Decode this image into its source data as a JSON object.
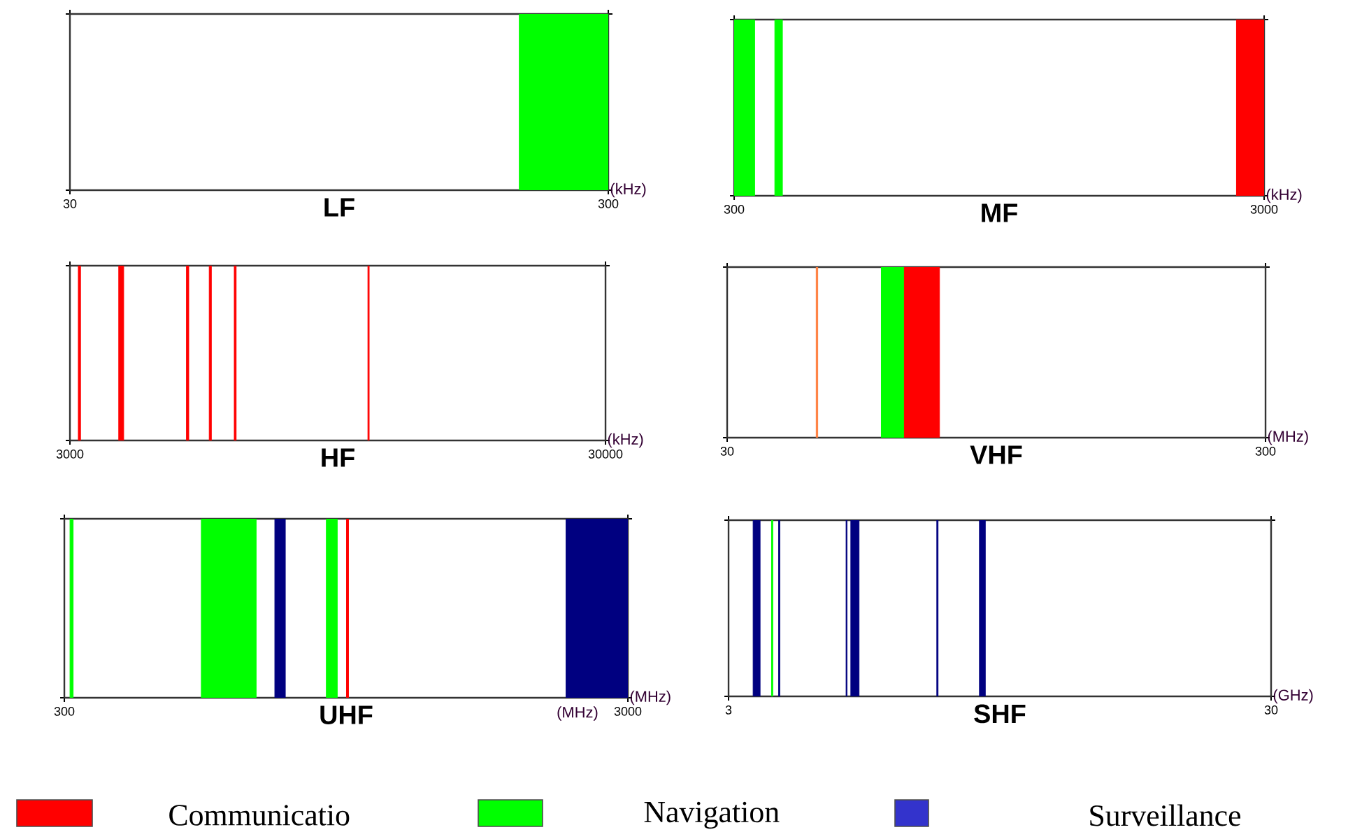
{
  "chart_data": [
    {
      "type": "bar",
      "orientation": "horizontal",
      "categories": [
        null
      ],
      "xlabel": "LF",
      "xlim": [
        30,
        300
      ],
      "xticks": [
        30,
        300
      ],
      "log": "x",
      "tick_labels": "x",
      "annotations": [
        "(kHz)"
      ],
      "series": [
        {
          "color": "#00ff00",
          "base": [
            205
          ],
          "values": [
            95
          ]
        }
      ]
    },
    {
      "type": "bar",
      "orientation": "horizontal",
      "categories": [
        null
      ],
      "xlabel": "MF",
      "xlim": [
        300,
        3000
      ],
      "xticks": [
        300,
        3000
      ],
      "log": "x",
      "tick_labels": "x",
      "annotations": [
        "(kHz)"
      ],
      "series": [
        {
          "color": "#00ff00",
          "base": [
            300
          ],
          "values": [
            28
          ]
        },
        {
          "color": "#00ff00",
          "base": [
            358
          ],
          "values": [
            12
          ]
        },
        {
          "color": "#ff0000",
          "base": [
            2660
          ],
          "values": [
            340
          ]
        }
      ]
    },
    {
      "type": "bar",
      "orientation": "horizontal",
      "categories": [
        null
      ],
      "xlabel": "HF",
      "xlim": [
        3000,
        30000
      ],
      "xticks": [
        3000,
        30000
      ],
      "log": "x",
      "tick_labels": "x",
      "annotations": [
        "(kHz)"
      ],
      "series": [
        {
          "color": "#ff0000",
          "base": [
            3110
          ],
          "values": [
            30
          ]
        },
        {
          "color": "#ff0000",
          "base": [
            3700
          ],
          "values": [
            80
          ]
        },
        {
          "color": "#ff0000",
          "base": [
            4950
          ],
          "values": [
            50
          ]
        },
        {
          "color": "#ff0000",
          "base": [
            5460
          ],
          "values": [
            50
          ]
        },
        {
          "color": "#ff0000",
          "base": [
            6080
          ],
          "values": [
            50
          ]
        },
        {
          "color": "#ff0000",
          "base": [
            10800
          ],
          "values": [
            60
          ]
        }
      ]
    },
    {
      "type": "bar",
      "orientation": "horizontal",
      "categories": [
        null
      ],
      "xlabel": "VHF",
      "xlim": [
        30,
        300
      ],
      "xticks": [
        30,
        300
      ],
      "log": "x",
      "tick_labels": "x",
      "annotations": [
        "(MHz)"
      ],
      "series": [
        {
          "color": "#ff8040",
          "base": [
            43.9
          ],
          "values": [
            0.3
          ]
        },
        {
          "color": "#00ff00",
          "base": [
            58
          ],
          "values": [
            6
          ]
        },
        {
          "color": "#ff0000",
          "base": [
            64
          ],
          "values": [
            10.4
          ]
        }
      ]
    },
    {
      "type": "bar",
      "orientation": "horizontal",
      "categories": [
        null
      ],
      "xlabel": "UHF",
      "xlim": [
        300,
        3000
      ],
      "xticks": [
        300,
        3000
      ],
      "log": "x",
      "tick_labels": "x",
      "annotations": [
        "(MHz)",
        "(MHz)"
      ],
      "series": [
        {
          "color": "#00ff00",
          "base": [
            307
          ],
          "values": [
            4
          ]
        },
        {
          "color": "#00ff00",
          "base": [
            525
          ],
          "values": [
            132
          ]
        },
        {
          "color": "#000080",
          "base": [
            709
          ],
          "values": [
            31
          ]
        },
        {
          "color": "#00ff00",
          "base": [
            875
          ],
          "values": [
            40
          ]
        },
        {
          "color": "#ff0000",
          "base": [
            950
          ],
          "values": [
            8
          ]
        },
        {
          "color": "#000080",
          "base": [
            2330
          ],
          "values": [
            670
          ]
        }
      ]
    },
    {
      "type": "bar",
      "orientation": "horizontal",
      "categories": [
        null
      ],
      "xlabel": "SHF",
      "xlim": [
        3,
        30
      ],
      "xticks": [
        3,
        30
      ],
      "log": "x",
      "tick_labels": "x",
      "annotations": [
        "(GHz)"
      ],
      "series": [
        {
          "color": "#000080",
          "base": [
            3.33
          ],
          "values": [
            0.1
          ]
        },
        {
          "color": "#00ff00",
          "base": [
            3.6
          ],
          "values": [
            0.02
          ]
        },
        {
          "color": "#000080",
          "base": [
            3.71
          ],
          "values": [
            0.02
          ]
        },
        {
          "color": "#000080",
          "base": [
            4.94
          ],
          "values": [
            0.02
          ]
        },
        {
          "color": "#000080",
          "base": [
            5.04
          ],
          "values": [
            0.18
          ]
        },
        {
          "color": "#000080",
          "base": [
            7.26
          ],
          "values": [
            0.04
          ]
        },
        {
          "color": "#000080",
          "base": [
            8.7
          ],
          "values": [
            0.22
          ]
        }
      ]
    },
    {
      "type": "other",
      "categories": [
        "Communicatio",
        "Navigation",
        "Surveillance"
      ],
      "colors": [
        "#ff0000",
        "#00ff00",
        "#3333cc"
      ]
    }
  ]
}
